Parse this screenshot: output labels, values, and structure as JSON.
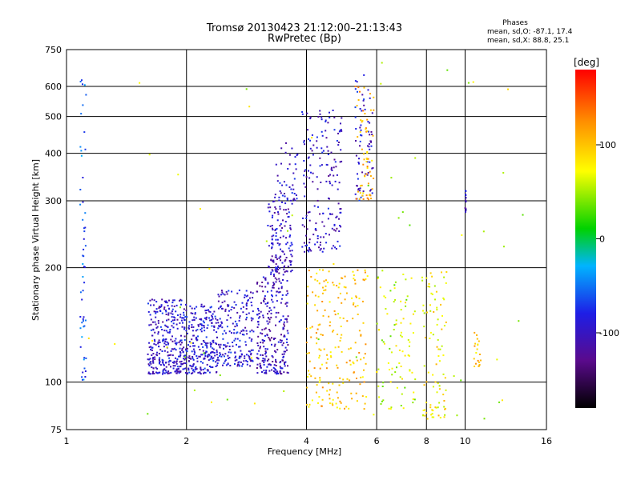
{
  "chart_data": {
    "type": "scatter",
    "title": "Tromsø 20130423 21:12:00–21:13:43",
    "subtitle": "RwPretec (Bp)",
    "xlabel": "Frequency [MHz]",
    "ylabel": "Stationary phase Virtual Height [km]",
    "x_scale": "log",
    "y_scale": "log",
    "xlim": [
      1,
      16
    ],
    "ylim": [
      75,
      750
    ],
    "x_ticks": [
      1,
      2,
      4,
      6,
      8,
      10,
      16
    ],
    "y_ticks": [
      75,
      100,
      200,
      300,
      400,
      500,
      600,
      750
    ],
    "grid": true,
    "stats": {
      "title": "Phases",
      "line1": "mean, sd,O: -87.1, 17.4",
      "line2": "mean, sd,X: 88.8, 25.1"
    },
    "colorbar": {
      "label": "[deg]",
      "range": [
        -180,
        180
      ],
      "ticks": [
        -100,
        0,
        100
      ],
      "colormap": "rainbow",
      "stops": [
        "#000000",
        "#5a0a8c",
        "#1e1ee6",
        "#00b4ff",
        "#00d200",
        "#ffff00",
        "#ff8c00",
        "#ff0000"
      ]
    },
    "series": [
      {
        "clusters": [
          {
            "freq": [
              1.6,
              2.0
            ],
            "height": [
              105,
              165
            ],
            "phase": -95,
            "n": 320
          },
          {
            "freq": [
              2.0,
              2.4
            ],
            "height": [
              105,
              160
            ],
            "phase": -90,
            "n": 230
          },
          {
            "freq": [
              2.4,
              2.95
            ],
            "height": [
              110,
              175
            ],
            "phase": -92,
            "n": 200
          },
          {
            "freq": [
              3.0,
              3.6
            ],
            "height": [
              105,
              195
            ],
            "phase": -105,
            "n": 260
          },
          {
            "freq": [
              3.2,
              3.7
            ],
            "height": [
              195,
              300
            ],
            "phase": -100,
            "n": 130
          },
          {
            "freq": [
              3.3,
              3.8
            ],
            "height": [
              300,
              440
            ],
            "phase": -95,
            "n": 45
          },
          {
            "freq": [
              3.9,
              4.9
            ],
            "height": [
              220,
              520
            ],
            "phase": -100,
            "n": 180
          },
          {
            "freq": [
              5.3,
              5.9
            ],
            "height": [
              300,
              650
            ],
            "phase": -95,
            "n": 70
          },
          {
            "freq": [
              1.08,
              1.12
            ],
            "height": [
              100,
              680
            ],
            "phase": -60,
            "n": 55
          },
          {
            "freq": [
              10.0,
              10.05
            ],
            "height": [
              280,
              320
            ],
            "phase": -100,
            "n": 12
          }
        ]
      },
      {
        "clusters": [
          {
            "freq": [
              4.0,
              5.7
            ],
            "height": [
              85,
              200
            ],
            "phase": 100,
            "n": 200
          },
          {
            "freq": [
              5.3,
              5.9
            ],
            "height": [
              300,
              600
            ],
            "phase": 110,
            "n": 60
          },
          {
            "freq": [
              6.0,
              7.5
            ],
            "height": [
              85,
              200
            ],
            "phase": 60,
            "n": 90
          },
          {
            "freq": [
              7.8,
              9.0
            ],
            "height": [
              80,
              200
            ],
            "phase": 80,
            "n": 90
          },
          {
            "freq": [
              10.5,
              11.0
            ],
            "height": [
              110,
              135
            ],
            "phase": 100,
            "n": 20
          },
          {
            "freq": [
              1.05,
              14.0
            ],
            "height": [
              80,
              700
            ],
            "phase": 60,
            "n": 60
          }
        ]
      }
    ]
  }
}
